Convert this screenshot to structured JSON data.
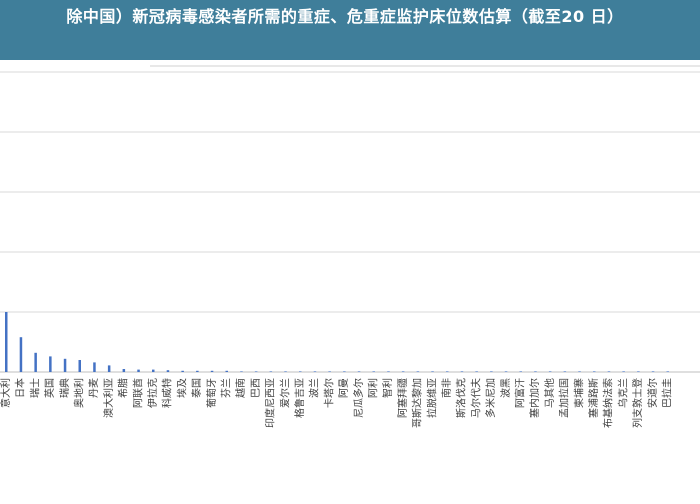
{
  "banner": {
    "title": "除中国）新冠病毒感染者所需的重症、危重症监护床位数估算（截至20 日）",
    "color": "#3f7e9a"
  },
  "chart_data": {
    "type": "bar",
    "title": "除中国）新冠病毒感染者所需的重症、危重症监护床位数估算（截至20 日）",
    "xlabel": "",
    "ylabel": "",
    "grid": true,
    "legend": "none",
    "bar_color": "#4472c4",
    "ylim": [
      0,
      5
    ],
    "categories": [
      "意大利",
      "日本",
      "瑞士",
      "英国",
      "瑞典",
      "奥地利",
      "丹麦",
      "澳大利亚",
      "希腊",
      "阿联酋",
      "伊拉克",
      "科威特",
      "埃及",
      "泰国",
      "葡萄牙",
      "芬兰",
      "越南",
      "巴西",
      "印度尼西亚",
      "爱尔兰",
      "格鲁吉亚",
      "波兰",
      "卡塔尔",
      "阿曼",
      "尼瓜多尔",
      "阿利",
      "智利",
      "阿塞拜疆",
      "哥斯达黎加",
      "拉脱维亚",
      "南非",
      "斯洛伐克",
      "马尔代夫",
      "多米尼加",
      "波黑",
      "阿富汗",
      "塞内加尔",
      "马其他",
      "孟加拉国",
      "柬埔寨",
      "塞浦路斯",
      "布基纳法索",
      "乌克兰",
      "列支敦士登",
      "安道尔",
      "巴拉圭"
    ],
    "values": [
      1.0,
      0.58,
      0.32,
      0.26,
      0.22,
      0.2,
      0.16,
      0.11,
      0.05,
      0.04,
      0.04,
      0.03,
      0.02,
      0.02,
      0.02,
      0.02,
      0.01,
      0.01,
      0.01,
      0.01,
      0.01,
      0.01,
      0.01,
      0.01,
      0.01,
      0.01,
      0.01,
      0.01,
      0.01,
      0.01,
      0.01,
      0.01,
      0.01,
      0.01,
      0.01,
      0.01,
      0.01,
      0.01,
      0.01,
      0.01,
      0.01,
      0.01,
      0.01,
      0.01,
      0.01,
      0.01
    ]
  }
}
